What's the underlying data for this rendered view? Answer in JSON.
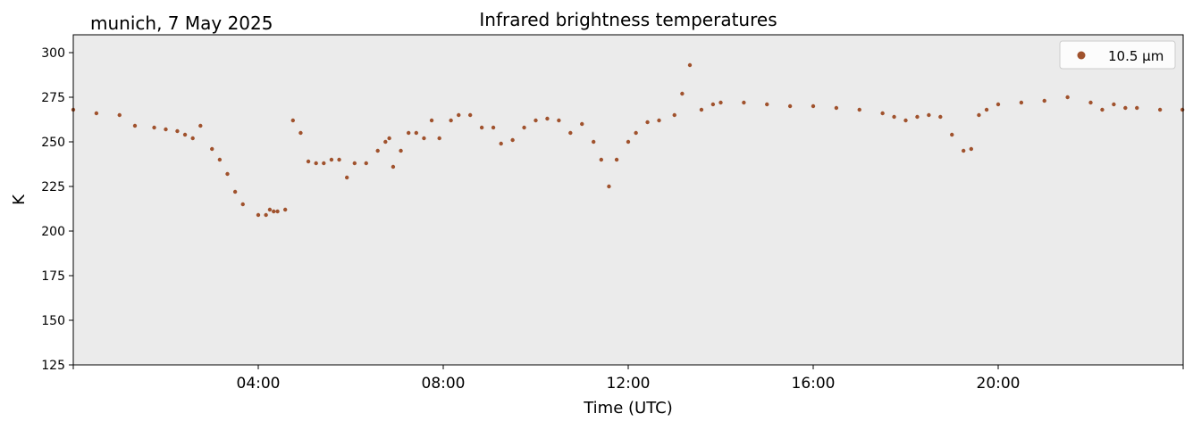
{
  "header": {
    "location_date": "munich, 7 May 2025",
    "title": "Infrared brightness temperatures"
  },
  "chart_data": {
    "type": "scatter",
    "title": "Infrared brightness temperatures",
    "xlabel": "Time (UTC)",
    "ylabel": "K",
    "xlim": [
      "00:00",
      "24:00"
    ],
    "ylim": [
      125,
      310
    ],
    "x_ticks": [
      "04:00",
      "08:00",
      "12:00",
      "16:00",
      "20:00"
    ],
    "y_ticks": [
      125,
      150,
      175,
      200,
      225,
      250,
      275,
      300
    ],
    "grid": false,
    "background_color": "#ebebeb",
    "legend_position": "top-right",
    "series": [
      {
        "name": "10.5 µm",
        "color": "#a0522d",
        "x": [
          "00:00",
          "00:30",
          "01:00",
          "01:20",
          "01:45",
          "02:00",
          "02:15",
          "02:25",
          "02:35",
          "02:45",
          "03:00",
          "03:10",
          "03:20",
          "03:30",
          "03:40",
          "04:00",
          "04:10",
          "04:15",
          "04:20",
          "04:25",
          "04:35",
          "04:45",
          "04:55",
          "05:05",
          "05:15",
          "05:25",
          "05:35",
          "05:45",
          "05:55",
          "06:05",
          "06:20",
          "06:35",
          "06:45",
          "06:50",
          "06:55",
          "07:05",
          "07:15",
          "07:25",
          "07:35",
          "07:45",
          "07:55",
          "08:10",
          "08:20",
          "08:35",
          "08:50",
          "09:05",
          "09:15",
          "09:30",
          "09:45",
          "10:00",
          "10:15",
          "10:30",
          "10:45",
          "11:00",
          "11:15",
          "11:25",
          "11:35",
          "11:45",
          "12:00",
          "12:10",
          "12:25",
          "12:40",
          "13:00",
          "13:10",
          "13:20",
          "13:35",
          "13:50",
          "14:00",
          "14:30",
          "15:00",
          "15:30",
          "16:00",
          "16:30",
          "17:00",
          "17:30",
          "17:45",
          "18:00",
          "18:15",
          "18:30",
          "18:45",
          "19:00",
          "19:15",
          "19:25",
          "19:35",
          "19:45",
          "20:00",
          "20:30",
          "21:00",
          "21:30",
          "22:00",
          "22:15",
          "22:30",
          "22:45",
          "23:00",
          "23:30",
          "23:59"
        ],
        "y": [
          268,
          266,
          265,
          259,
          258,
          257,
          256,
          254,
          252,
          259,
          246,
          240,
          232,
          222,
          215,
          209,
          209,
          212,
          211,
          211,
          212,
          262,
          255,
          239,
          238,
          238,
          240,
          240,
          230,
          238,
          238,
          245,
          250,
          252,
          236,
          245,
          255,
          255,
          252,
          262,
          252,
          262,
          265,
          265,
          258,
          258,
          249,
          251,
          258,
          262,
          263,
          262,
          255,
          260,
          250,
          240,
          225,
          240,
          250,
          255,
          261,
          262,
          265,
          277,
          293,
          268,
          271,
          272,
          272,
          271,
          270,
          270,
          269,
          268,
          266,
          264,
          262,
          264,
          265,
          264,
          254,
          245,
          246,
          265,
          268,
          271,
          272,
          273,
          275,
          272,
          268,
          271,
          269,
          269,
          268,
          268
        ]
      }
    ]
  }
}
